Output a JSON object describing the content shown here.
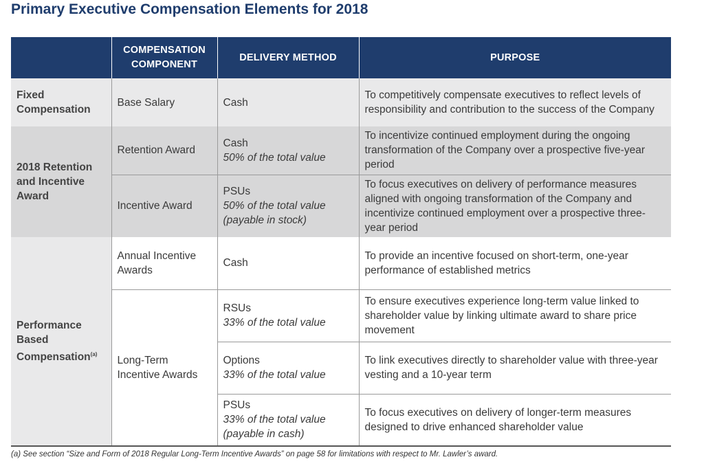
{
  "title": "Primary Executive Compensation Elements for 2018",
  "headers": {
    "category": "",
    "component": "COMPENSATION COMPONENT",
    "delivery": "DELIVERY METHOD",
    "purpose": "PURPOSE"
  },
  "fixed": {
    "category": "Fixed Compensation",
    "rows": [
      {
        "component": "Base Salary",
        "delivery": "Cash",
        "delivery_note": "",
        "purpose": "To competitively compensate executives to reflect levels of responsibility and contribution to the success of the Company"
      }
    ]
  },
  "retention": {
    "category": "2018 Retention and Incentive Award",
    "rows": [
      {
        "component": "Retention Award",
        "delivery": "Cash",
        "delivery_note": "50% of the total value",
        "purpose": "To incentivize continued employment during the ongoing transformation of the Company over a prospective five-year period"
      },
      {
        "component": "Incentive Award",
        "delivery": "PSUs",
        "delivery_note": "50% of the total value (payable in stock)",
        "purpose": "To focus executives on delivery of performance measures aligned with ongoing transformation of the Company and incentivize continued employment over a prospective three-year period"
      }
    ]
  },
  "performance": {
    "category": "Performance Based Compensation",
    "category_sup": "(a)",
    "annual": {
      "component": "Annual Incentive Awards",
      "delivery": "Cash",
      "delivery_note": "",
      "purpose": "To provide an incentive focused on short-term, one-year performance of established metrics"
    },
    "longterm_component": "Long-Term Incentive Awards",
    "longterm_rows": [
      {
        "delivery": "RSUs",
        "delivery_note": "33% of the total value",
        "purpose": "To ensure executives experience long-term value linked to shareholder value by linking ultimate award to share price movement"
      },
      {
        "delivery": "Options",
        "delivery_note": "33% of the total value",
        "purpose": "To link executives directly to shareholder value with three-year vesting and a 10-year term"
      },
      {
        "delivery": "PSUs",
        "delivery_note": "33% of the total value (payable in cash)",
        "purpose": "To focus executives on delivery of longer-term measures designed to drive enhanced shareholder value"
      }
    ]
  },
  "footnote": "(a) See section “Size and Form of 2018 Regular Long-Term Incentive Awards” on page 58 for limitations with respect to Mr. Lawler’s award."
}
